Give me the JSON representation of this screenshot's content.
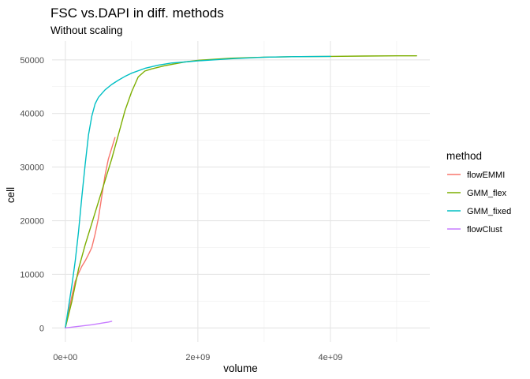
{
  "chart_data": {
    "type": "line",
    "title": "FSC vs.DAPI in diff. methods",
    "subtitle": "Without scaling",
    "xlabel": "volume",
    "ylabel": "cell",
    "xlim": [
      -200000000,
      5500000000
    ],
    "ylim": [
      -2600,
      53500
    ],
    "x_ticks": [
      0,
      2000000000,
      4000000000
    ],
    "x_tick_labels": [
      "0e+00",
      "2e+09",
      "4e+09"
    ],
    "y_ticks": [
      0,
      10000,
      20000,
      30000,
      40000,
      50000
    ],
    "y_tick_labels": [
      "0",
      "10000",
      "20000",
      "30000",
      "40000",
      "50000"
    ],
    "grid": true,
    "legend": {
      "title": "method",
      "position": "right"
    },
    "series": [
      {
        "name": "flowEMMI",
        "color": "#F8766D",
        "points": [
          [
            0,
            0
          ],
          [
            50000000,
            3000
          ],
          [
            100000000,
            6000
          ],
          [
            150000000,
            8700
          ],
          [
            200000000,
            10200
          ],
          [
            250000000,
            11500
          ],
          [
            300000000,
            12500
          ],
          [
            350000000,
            13700
          ],
          [
            400000000,
            15000
          ],
          [
            450000000,
            17500
          ],
          [
            500000000,
            20500
          ],
          [
            550000000,
            24500
          ],
          [
            600000000,
            28500
          ],
          [
            650000000,
            31500
          ],
          [
            700000000,
            33500
          ],
          [
            750000000,
            35500
          ]
        ]
      },
      {
        "name": "GMM_flex",
        "color": "#7CAE00",
        "points": [
          [
            0,
            0
          ],
          [
            100000000,
            5000
          ],
          [
            200000000,
            11000
          ],
          [
            300000000,
            15500
          ],
          [
            400000000,
            19500
          ],
          [
            500000000,
            23500
          ],
          [
            600000000,
            27500
          ],
          [
            700000000,
            31500
          ],
          [
            800000000,
            36000
          ],
          [
            900000000,
            40500
          ],
          [
            1000000000,
            44000
          ],
          [
            1100000000,
            46800
          ],
          [
            1200000000,
            47900
          ],
          [
            1300000000,
            48300
          ],
          [
            1500000000,
            48900
          ],
          [
            1800000000,
            49600
          ],
          [
            2000000000,
            49900
          ],
          [
            2500000000,
            50300
          ],
          [
            3000000000,
            50500
          ],
          [
            3500000000,
            50600
          ],
          [
            4000000000,
            50650
          ],
          [
            4500000000,
            50700
          ],
          [
            5000000000,
            50750
          ],
          [
            5300000000,
            50750
          ]
        ]
      },
      {
        "name": "GMM_fixed",
        "color": "#00BFC4",
        "points": [
          [
            0,
            0
          ],
          [
            50000000,
            4000
          ],
          [
            100000000,
            8000
          ],
          [
            150000000,
            12500
          ],
          [
            200000000,
            18000
          ],
          [
            250000000,
            24500
          ],
          [
            300000000,
            30500
          ],
          [
            350000000,
            36000
          ],
          [
            400000000,
            39500
          ],
          [
            450000000,
            41800
          ],
          [
            500000000,
            43000
          ],
          [
            600000000,
            44400
          ],
          [
            700000000,
            45400
          ],
          [
            800000000,
            46200
          ],
          [
            900000000,
            46900
          ],
          [
            1000000000,
            47500
          ],
          [
            1200000000,
            48400
          ],
          [
            1400000000,
            49000
          ],
          [
            1600000000,
            49400
          ],
          [
            1800000000,
            49600
          ],
          [
            2000000000,
            49800
          ],
          [
            2500000000,
            50200
          ],
          [
            3000000000,
            50500
          ],
          [
            3500000000,
            50600
          ],
          [
            4000000000,
            50650
          ]
        ]
      },
      {
        "name": "flowClust",
        "color": "#C77CFF",
        "points": [
          [
            0,
            0
          ],
          [
            100000000,
            150
          ],
          [
            200000000,
            300
          ],
          [
            300000000,
            450
          ],
          [
            400000000,
            600
          ],
          [
            500000000,
            800
          ],
          [
            600000000,
            1000
          ],
          [
            650000000,
            1100
          ],
          [
            700000000,
            1250
          ]
        ]
      }
    ]
  }
}
